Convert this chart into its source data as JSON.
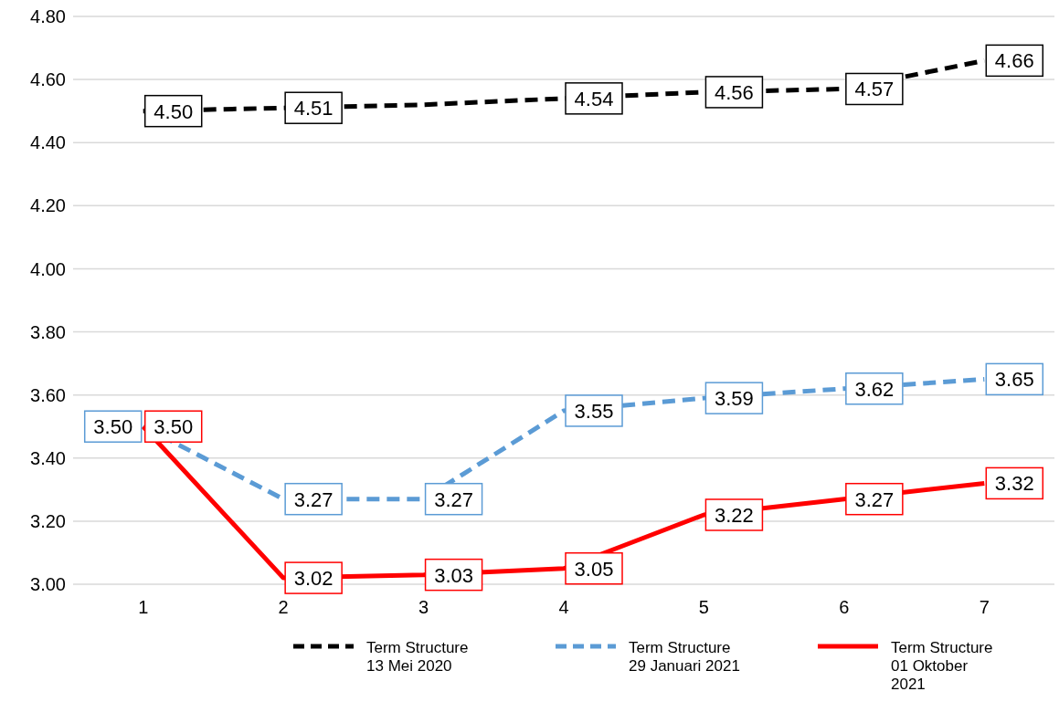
{
  "chart_data": {
    "type": "line",
    "categories": [
      "1",
      "2",
      "3",
      "4",
      "5",
      "6",
      "7"
    ],
    "series": [
      {
        "name": "Term Structure 13 Mei 2020",
        "color": "#000000",
        "line_style": "dashed",
        "values": [
          4.5,
          4.51,
          4.52,
          4.54,
          4.56,
          4.57,
          4.66
        ],
        "value_labels": [
          "4.50",
          "4.51",
          null,
          "4.54",
          "4.56",
          "4.57",
          "4.66"
        ]
      },
      {
        "name": "Term Structure 29 Januari 2021",
        "color": "#5b9bd5",
        "line_style": "dashed",
        "values": [
          3.5,
          3.27,
          3.27,
          3.55,
          3.59,
          3.62,
          3.65
        ],
        "value_labels": [
          "3.50",
          "3.27",
          "3.27",
          "3.55",
          "3.59",
          "3.62",
          "3.65"
        ]
      },
      {
        "name": "Term Structure 01 Oktober 2021",
        "color": "#ff0000",
        "line_style": "solid",
        "values": [
          3.5,
          3.02,
          3.03,
          3.05,
          3.22,
          3.27,
          3.32
        ],
        "value_labels": [
          "3.50",
          "3.02",
          "3.03",
          "3.05",
          "3.22",
          "3.27",
          "3.32"
        ]
      }
    ],
    "ylim": [
      3.0,
      4.8
    ],
    "yticks": [
      {
        "value": 3.0,
        "label": "3.00"
      },
      {
        "value": 3.2,
        "label": "3.20"
      },
      {
        "value": 3.4,
        "label": "3.40"
      },
      {
        "value": 3.6,
        "label": "3.60"
      },
      {
        "value": 3.8,
        "label": "3.80"
      },
      {
        "value": 4.0,
        "label": "4.00"
      },
      {
        "value": 4.2,
        "label": "4.20"
      },
      {
        "value": 4.4,
        "label": "4.40"
      },
      {
        "value": 4.6,
        "label": "4.60"
      },
      {
        "value": 4.8,
        "label": "4.80"
      }
    ],
    "grid": "y",
    "legend": "bottom",
    "marker": "none"
  }
}
